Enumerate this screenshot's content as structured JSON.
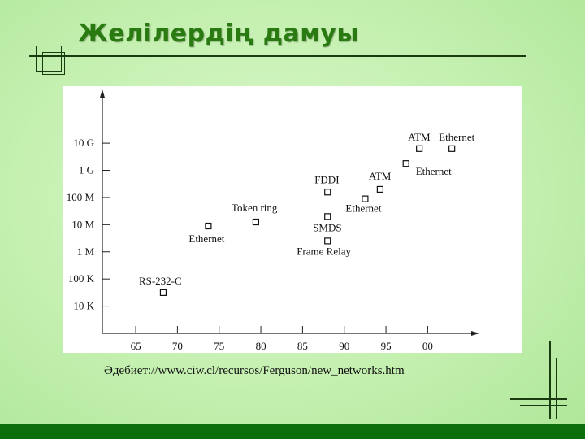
{
  "slide": {
    "title": "Желілердің дамуы",
    "source": "Әдебиет://www.ciw.cl/recursos/Ferguson/new_networks.htm"
  },
  "colors": {
    "background": "#c4f0b0",
    "title": "#2a7a12",
    "bottom_bar": "#0b6e0b",
    "chart_panel": "#ffffff",
    "ink": "#1a1a1a"
  },
  "chart_data": {
    "type": "scatter",
    "title": "",
    "xlabel": "",
    "ylabel": "",
    "x_ticks": [
      "65",
      "70",
      "75",
      "80",
      "85",
      "90",
      "95",
      "00"
    ],
    "x_tick_values": [
      65,
      70,
      75,
      80,
      85,
      90,
      95,
      100
    ],
    "xlim": [
      61,
      106
    ],
    "y_ticks": [
      "10 K",
      "100 K",
      "1 M",
      "10 M",
      "100 M",
      "1 G",
      "10 G"
    ],
    "y_tick_values": [
      4,
      5,
      6,
      7,
      8,
      9,
      10
    ],
    "y_scale": "log10 (bits per second)",
    "ylim": [
      3,
      11.5
    ],
    "grid": false,
    "points": [
      {
        "label": "RS-232-C",
        "x": 68.3,
        "y": 4.5
      },
      {
        "label": "Ethernet",
        "x": 73.7,
        "y": 6.95
      },
      {
        "label": "Token ring",
        "x": 79.4,
        "y": 7.1
      },
      {
        "label": "FDDI",
        "x": 88.0,
        "y": 8.2
      },
      {
        "label": "SMDS",
        "x": 88.0,
        "y": 7.3
      },
      {
        "label": "Frame Relay",
        "x": 88.0,
        "y": 6.4
      },
      {
        "label": "Ethernet",
        "x": 92.5,
        "y": 7.95
      },
      {
        "label": "ATM",
        "x": 94.3,
        "y": 8.3
      },
      {
        "label": "Ethernet",
        "x": 97.4,
        "y": 9.25
      },
      {
        "label": "ATM",
        "x": 99.0,
        "y": 9.8
      },
      {
        "label": "Ethernet",
        "x": 102.9,
        "y": 9.8
      }
    ]
  }
}
